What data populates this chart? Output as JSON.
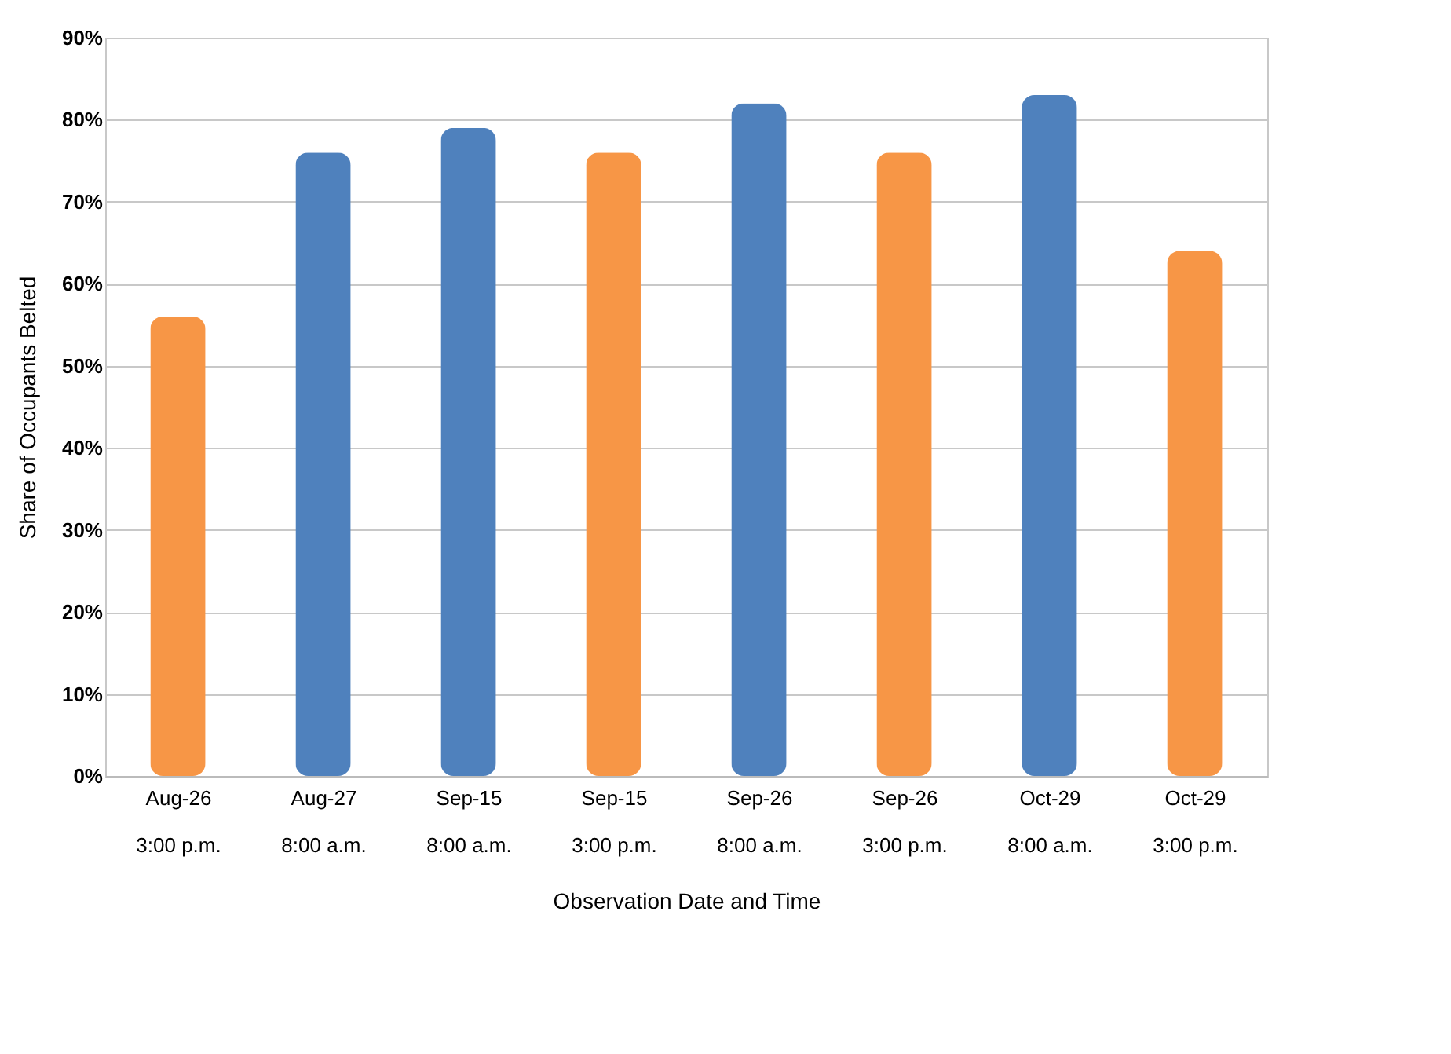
{
  "chart_data": {
    "type": "bar",
    "categories": [
      "Aug-26\n3:00 p.m.",
      "Aug-27\n8:00 a.m.",
      "Sep-15\n8:00 a.m.",
      "Sep-15\n3:00 p.m.",
      "Sep-26\n8:00 a.m.",
      "Sep-26\n3:00 p.m.",
      "Oct-29\n8:00 a.m.",
      "Oct-29\n3:00 p.m."
    ],
    "values": [
      56,
      76,
      79,
      76,
      82,
      76,
      83,
      64
    ],
    "colors": [
      "#f79646",
      "#4f81bd",
      "#4f81bd",
      "#f79646",
      "#4f81bd",
      "#f79646",
      "#4f81bd",
      "#f79646"
    ],
    "xlabel": "Observation Date and Time",
    "ylabel": "Share of Occupants Belted",
    "ylim": [
      0,
      90
    ],
    "yticks": [
      {
        "value": 0,
        "label": "0%"
      },
      {
        "value": 10,
        "label": "10%"
      },
      {
        "value": 20,
        "label": "20%"
      },
      {
        "value": 30,
        "label": "30%"
      },
      {
        "value": 40,
        "label": "40%"
      },
      {
        "value": 50,
        "label": "50%"
      },
      {
        "value": 60,
        "label": "60%"
      },
      {
        "value": 70,
        "label": "70%"
      },
      {
        "value": 80,
        "label": "80%"
      },
      {
        "value": 90,
        "label": "90%"
      }
    ],
    "grid": "y"
  }
}
